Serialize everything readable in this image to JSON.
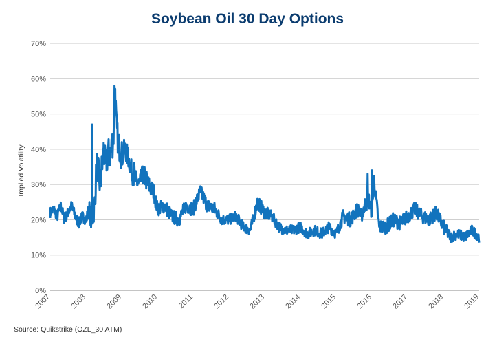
{
  "source_note": "Source: Quikstrike (OZL_30 ATM)",
  "colors": {
    "line": "#1273bd",
    "title": "#0b3c6f",
    "grid": "#c8c8c8"
  },
  "chart_data": {
    "type": "line",
    "title": "Soybean Oil 30 Day Options",
    "xlabel": "",
    "ylabel": "Implied Volatility",
    "xlim": [
      2007,
      2019
    ],
    "ylim": [
      0,
      70
    ],
    "x_ticks": [
      "2007",
      "2008",
      "2009",
      "2010",
      "2011",
      "2012",
      "2013",
      "2014",
      "2015",
      "2016",
      "2017",
      "2018",
      "2019"
    ],
    "y_ticks": [
      "0%",
      "10%",
      "20%",
      "30%",
      "40%",
      "50%",
      "60%",
      "70%"
    ],
    "grid": true,
    "legend": "none",
    "series": [
      {
        "x": [
          2007.0,
          2007.1,
          2007.2,
          2007.3,
          2007.4,
          2007.5,
          2007.6,
          2007.7,
          2007.8,
          2007.9,
          2008.0,
          2008.1,
          2008.15,
          2008.2,
          2008.25,
          2008.3,
          2008.4,
          2008.5,
          2008.55,
          2008.6,
          2008.7,
          2008.78,
          2008.82,
          2008.85,
          2008.9,
          2009.0,
          2009.1,
          2009.2,
          2009.3,
          2009.4,
          2009.5,
          2009.6,
          2009.7,
          2009.8,
          2009.9,
          2010.0,
          2010.2,
          2010.4,
          2010.6,
          2010.8,
          2011.0,
          2011.2,
          2011.4,
          2011.6,
          2011.8,
          2012.0,
          2012.2,
          2012.4,
          2012.6,
          2012.8,
          2013.0,
          2013.2,
          2013.4,
          2013.6,
          2013.8,
          2014.0,
          2014.2,
          2014.4,
          2014.6,
          2014.8,
          2015.0,
          2015.2,
          2015.4,
          2015.6,
          2015.7,
          2015.8,
          2015.9,
          2016.0,
          2016.05,
          2016.2,
          2016.4,
          2016.6,
          2016.8,
          2017.0,
          2017.2,
          2017.4,
          2017.6,
          2017.8,
          2018.0,
          2018.2,
          2018.4,
          2018.6,
          2018.8,
          2019.0
        ],
        "values": [
          22,
          23,
          21,
          24,
          20,
          22,
          24,
          21,
          19,
          21,
          20,
          23,
          19,
          21,
          25,
          36,
          30,
          40,
          35,
          38,
          39,
          45,
          58,
          47,
          42,
          38,
          40,
          37,
          33,
          31,
          30,
          33,
          31,
          29,
          28,
          23,
          24,
          21,
          20,
          24,
          23,
          28,
          24,
          23,
          20,
          20,
          21,
          18,
          17,
          25,
          22,
          21,
          18,
          17,
          17,
          18,
          16,
          17,
          16,
          18,
          16,
          21,
          20,
          23,
          21,
          24,
          26,
          22,
          32,
          18,
          18,
          20,
          19,
          21,
          23,
          21,
          20,
          22,
          18,
          15,
          16,
          15,
          17,
          15
        ],
        "noise": [
          1.5,
          1.5,
          1.5,
          1.5,
          1.5,
          1.5,
          1.5,
          1.5,
          1.5,
          1.5,
          1.5,
          2.5,
          2.5,
          3,
          4,
          4,
          5,
          5,
          4,
          5,
          5,
          5,
          3,
          4,
          4,
          4,
          3,
          3,
          3,
          3,
          3,
          3,
          3,
          2.5,
          2.5,
          2,
          2,
          2,
          2,
          2,
          2,
          2,
          2,
          2,
          1.5,
          1.5,
          1.5,
          1.5,
          1.5,
          2,
          2,
          1.5,
          1.5,
          1.5,
          1.5,
          1.5,
          1.5,
          1.5,
          1.5,
          1.5,
          1.5,
          2,
          2,
          2,
          2,
          2.5,
          2.5,
          2,
          2,
          2,
          2,
          2,
          2,
          2,
          2,
          2,
          2,
          2,
          2,
          1.5,
          1.5,
          1.5,
          1.5,
          1.5
        ],
        "spikes": [
          [
            2008.17,
            47
          ],
          [
            2008.8,
            58
          ],
          [
            2008.83,
            50
          ],
          [
            2009.0,
            42
          ],
          [
            2009.35,
            36
          ],
          [
            2015.88,
            33
          ],
          [
            2016.0,
            34
          ]
        ]
      }
    ]
  }
}
